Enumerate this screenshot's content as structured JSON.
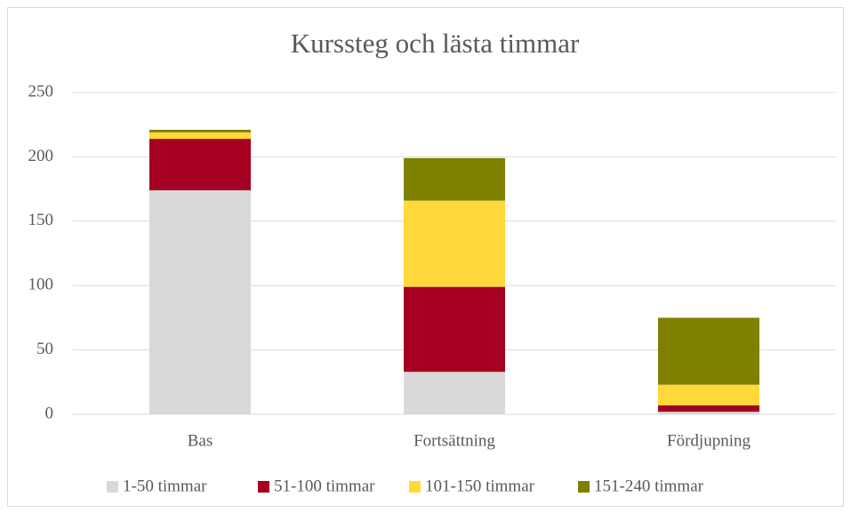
{
  "chart_data": {
    "type": "stacked_bar",
    "title": "Kurssteg och lästa timmar",
    "categories": [
      "Bas",
      "Fortsättning",
      "Fördjupning"
    ],
    "series": [
      {
        "name": "1-50 timmar",
        "color": "#d9d9d9",
        "values": [
          174,
          33,
          2
        ]
      },
      {
        "name": "51-100 timmar",
        "color": "#a50021",
        "values": [
          40,
          66,
          5
        ]
      },
      {
        "name": "101-150 timmar",
        "color": "#ffd83a",
        "values": [
          5,
          67,
          16
        ]
      },
      {
        "name": "151-240 timmar",
        "color": "#7f7f00",
        "values": [
          2,
          33,
          52
        ]
      }
    ],
    "ylim": [
      0,
      250
    ],
    "yticks": [
      0,
      50,
      100,
      150,
      200,
      250
    ],
    "grid": true,
    "legend": "bottom"
  }
}
